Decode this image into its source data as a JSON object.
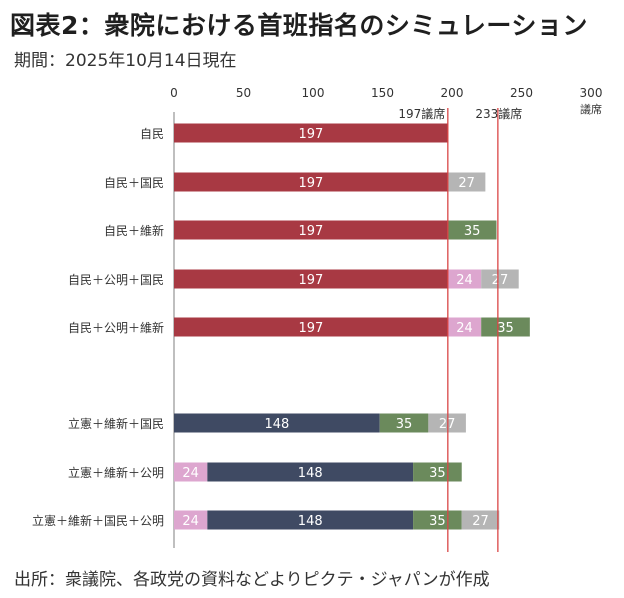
{
  "header": {
    "title": "図表2：衆院における首班指名のシミュレーション",
    "subtitle": "期間：2025年10月14日現在"
  },
  "footer": {
    "source": "出所：衆議院、各政党の資料などよりピクテ・ジャパンが作成"
  },
  "colors": {
    "jimin": "#a83943",
    "rikken": "#3f4a63",
    "ishin": "#6b8a5c",
    "kokumin": "#b5b5b5",
    "komei": "#dda6cf",
    "threshold_line": "#d94646",
    "axis": "#7f7f7f"
  },
  "chart_data": {
    "type": "bar",
    "orientation": "horizontal",
    "stacked": true,
    "xlim": [
      0,
      300
    ],
    "x_ticks": [
      0,
      50,
      100,
      150,
      200,
      250,
      300
    ],
    "x_unit_label": "議席",
    "grid": false,
    "legend": "none",
    "reference_lines": [
      {
        "value": 197,
        "label": "197議席"
      },
      {
        "value": 233,
        "label": "233議席"
      }
    ],
    "groups": [
      {
        "label": "自民",
        "segments": [
          {
            "party": "jimin",
            "value": 197
          }
        ]
      },
      {
        "label": "自民＋国民",
        "segments": [
          {
            "party": "jimin",
            "value": 197
          },
          {
            "party": "kokumin",
            "value": 27
          }
        ]
      },
      {
        "label": "自民＋維新",
        "segments": [
          {
            "party": "jimin",
            "value": 197
          },
          {
            "party": "ishin",
            "value": 35
          }
        ]
      },
      {
        "label": "自民＋公明＋国民",
        "segments": [
          {
            "party": "jimin",
            "value": 197
          },
          {
            "party": "komei",
            "value": 24
          },
          {
            "party": "kokumin",
            "value": 27
          }
        ]
      },
      {
        "label": "自民＋公明＋維新",
        "segments": [
          {
            "party": "jimin",
            "value": 197
          },
          {
            "party": "komei",
            "value": 24
          },
          {
            "party": "ishin",
            "value": 35
          }
        ]
      },
      {
        "label": "立憲＋維新＋国民",
        "segments": [
          {
            "party": "rikken",
            "value": 148
          },
          {
            "party": "ishin",
            "value": 35
          },
          {
            "party": "kokumin",
            "value": 27
          }
        ]
      },
      {
        "label": "立憲＋維新＋公明",
        "segments": [
          {
            "party": "komei",
            "value": 24
          },
          {
            "party": "rikken",
            "value": 148
          },
          {
            "party": "ishin",
            "value": 35
          }
        ]
      },
      {
        "label": "立憲＋維新＋国民＋公明",
        "segments": [
          {
            "party": "komei",
            "value": 24
          },
          {
            "party": "rikken",
            "value": 148
          },
          {
            "party": "ishin",
            "value": 35
          },
          {
            "party": "kokumin",
            "value": 27
          }
        ]
      }
    ]
  }
}
